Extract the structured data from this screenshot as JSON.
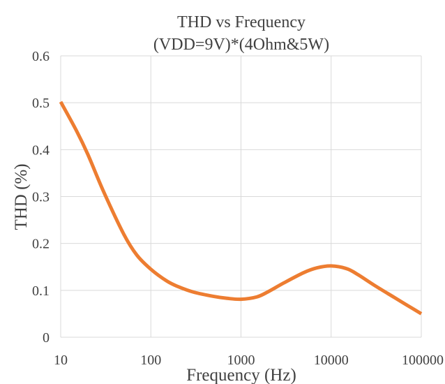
{
  "chart_data": {
    "type": "line",
    "title_line1": "THD vs Frequency",
    "title_line2": "(VDD=9V)*(4Ohm&5W)",
    "xlabel": "Frequency (Hz)",
    "ylabel": "THD (%)",
    "x_scale": "log",
    "xlim": [
      10,
      100000
    ],
    "ylim": [
      0,
      0.6
    ],
    "x_ticks": [
      10,
      100,
      1000,
      10000,
      100000
    ],
    "x_tick_labels": [
      "10",
      "100",
      "1000",
      "10000",
      "100000"
    ],
    "y_ticks": [
      0,
      0.1,
      0.2,
      0.3,
      0.4,
      0.5,
      0.6
    ],
    "y_tick_labels": [
      "0",
      "0.1",
      "0.2",
      "0.3",
      "0.4",
      "0.5",
      "0.6"
    ],
    "grid": true,
    "legend": "none",
    "series": [
      {
        "color": "#ED7D31",
        "x": [
          10,
          15,
          20,
          30,
          50,
          70,
          100,
          150,
          200,
          300,
          500,
          700,
          1000,
          1500,
          2000,
          3000,
          5000,
          7000,
          10000,
          15000,
          20000,
          30000,
          50000,
          70000,
          100000
        ],
        "y": [
          0.502,
          0.44,
          0.39,
          0.31,
          0.22,
          0.175,
          0.145,
          0.12,
          0.108,
          0.096,
          0.087,
          0.083,
          0.081,
          0.086,
          0.097,
          0.116,
          0.138,
          0.148,
          0.152,
          0.146,
          0.133,
          0.111,
          0.085,
          0.068,
          0.05
        ]
      }
    ]
  },
  "colors": {
    "grid": "#d9d9d9",
    "text": "#404040",
    "line": "#ED7D31",
    "background": "#ffffff"
  }
}
